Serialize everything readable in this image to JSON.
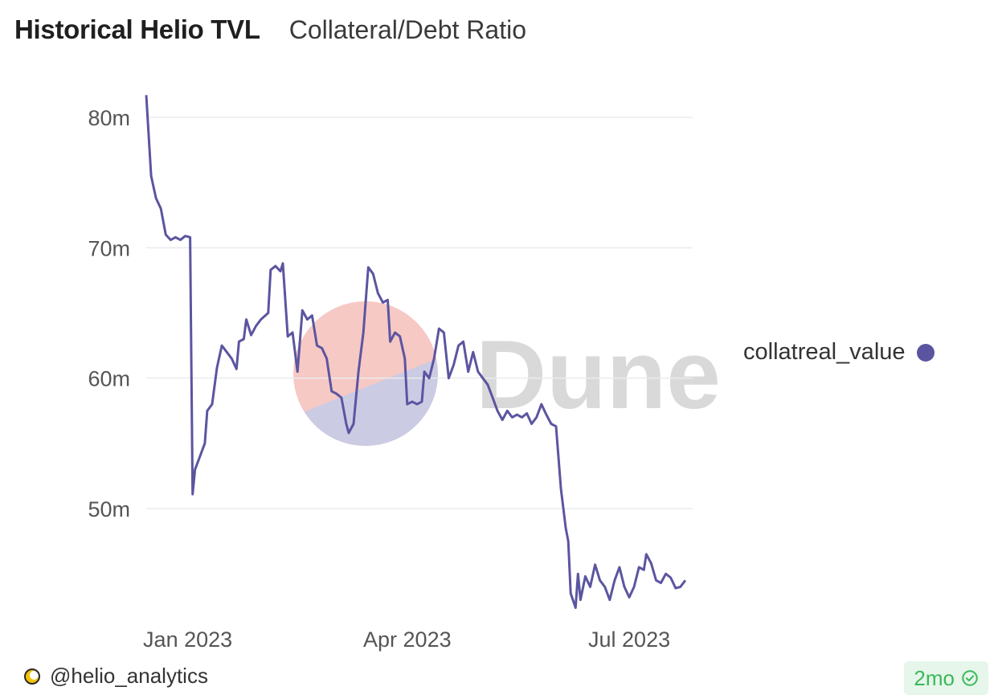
{
  "header": {
    "title": "Historical Helio TVL",
    "tab_label": "Collateral/Debt Ratio"
  },
  "legend": {
    "label": "collatreal_value",
    "color": "#5b55a0"
  },
  "watermark": {
    "text": "Dune",
    "color": "#d9d9d9",
    "logo_top_color": "#f6c9c5",
    "logo_bottom_color": "#cbcbe3"
  },
  "footer": {
    "creator": "@helio_analytics",
    "age_badge": "2mo",
    "badge_icon": "check-circle-icon",
    "avatar_icon": "moon-icon"
  },
  "chart_data": {
    "type": "line",
    "title": "Historical Helio TVL",
    "xlabel": "",
    "ylabel": "",
    "x_start": "2022-12-15",
    "x_end": "2023-07-27",
    "ylim": [
      42,
      83
    ],
    "grid": true,
    "legend_position": "right",
    "y_ticks": [
      {
        "value": 80,
        "label": "80m"
      },
      {
        "value": 70,
        "label": "70m"
      },
      {
        "value": 60,
        "label": "60m"
      },
      {
        "value": 50,
        "label": "50m"
      }
    ],
    "x_ticks": [
      {
        "date": "2023-01-01",
        "label": "Jan 2023"
      },
      {
        "date": "2023-04-01",
        "label": "Apr 2023"
      },
      {
        "date": "2023-07-01",
        "label": "Jul 2023"
      }
    ],
    "series": [
      {
        "name": "collatreal_value",
        "color": "#5b55a0",
        "points": [
          [
            "2022-12-15",
            81.7
          ],
          [
            "2022-12-17",
            75.5
          ],
          [
            "2022-12-19",
            73.8
          ],
          [
            "2022-12-21",
            73.0
          ],
          [
            "2022-12-23",
            71.0
          ],
          [
            "2022-12-25",
            70.6
          ],
          [
            "2022-12-27",
            70.8
          ],
          [
            "2022-12-29",
            70.6
          ],
          [
            "2022-12-31",
            70.9
          ],
          [
            "2023-01-02",
            70.8
          ],
          [
            "2023-01-03",
            51.1
          ],
          [
            "2023-01-04",
            53.0
          ],
          [
            "2023-01-06",
            54.0
          ],
          [
            "2023-01-08",
            55.0
          ],
          [
            "2023-01-09",
            57.5
          ],
          [
            "2023-01-11",
            58.0
          ],
          [
            "2023-01-13",
            60.8
          ],
          [
            "2023-01-15",
            62.5
          ],
          [
            "2023-01-17",
            62.0
          ],
          [
            "2023-01-19",
            61.5
          ],
          [
            "2023-01-21",
            60.7
          ],
          [
            "2023-01-22",
            62.8
          ],
          [
            "2023-01-24",
            63.0
          ],
          [
            "2023-01-25",
            64.5
          ],
          [
            "2023-01-27",
            63.3
          ],
          [
            "2023-01-29",
            64.0
          ],
          [
            "2023-01-31",
            64.5
          ],
          [
            "2023-02-03",
            65.0
          ],
          [
            "2023-02-04",
            68.3
          ],
          [
            "2023-02-06",
            68.6
          ],
          [
            "2023-02-08",
            68.2
          ],
          [
            "2023-02-09",
            68.8
          ],
          [
            "2023-02-11",
            63.2
          ],
          [
            "2023-02-13",
            63.5
          ],
          [
            "2023-02-15",
            60.5
          ],
          [
            "2023-02-17",
            65.2
          ],
          [
            "2023-02-19",
            64.5
          ],
          [
            "2023-02-21",
            64.8
          ],
          [
            "2023-02-23",
            62.5
          ],
          [
            "2023-02-25",
            62.3
          ],
          [
            "2023-02-27",
            61.5
          ],
          [
            "2023-03-01",
            59.0
          ],
          [
            "2023-03-03",
            58.8
          ],
          [
            "2023-03-05",
            58.5
          ],
          [
            "2023-03-07",
            56.5
          ],
          [
            "2023-03-08",
            55.8
          ],
          [
            "2023-03-10",
            56.5
          ],
          [
            "2023-03-12",
            60.5
          ],
          [
            "2023-03-14",
            63.5
          ],
          [
            "2023-03-16",
            68.5
          ],
          [
            "2023-03-18",
            68.0
          ],
          [
            "2023-03-20",
            66.5
          ],
          [
            "2023-03-22",
            65.8
          ],
          [
            "2023-03-24",
            66.0
          ],
          [
            "2023-03-25",
            62.8
          ],
          [
            "2023-03-27",
            63.5
          ],
          [
            "2023-03-29",
            63.2
          ],
          [
            "2023-03-31",
            61.5
          ],
          [
            "2023-04-01",
            58.0
          ],
          [
            "2023-04-03",
            58.2
          ],
          [
            "2023-04-05",
            58.0
          ],
          [
            "2023-04-07",
            58.2
          ],
          [
            "2023-04-08",
            60.5
          ],
          [
            "2023-04-10",
            60.0
          ],
          [
            "2023-04-12",
            61.5
          ],
          [
            "2023-04-14",
            63.8
          ],
          [
            "2023-04-16",
            63.5
          ],
          [
            "2023-04-18",
            60.0
          ],
          [
            "2023-04-20",
            61.0
          ],
          [
            "2023-04-22",
            62.5
          ],
          [
            "2023-04-24",
            62.8
          ],
          [
            "2023-04-26",
            60.5
          ],
          [
            "2023-04-28",
            62.0
          ],
          [
            "2023-04-30",
            60.5
          ],
          [
            "2023-05-02",
            60.0
          ],
          [
            "2023-05-04",
            59.5
          ],
          [
            "2023-05-06",
            58.5
          ],
          [
            "2023-05-08",
            57.5
          ],
          [
            "2023-05-10",
            56.8
          ],
          [
            "2023-05-12",
            57.5
          ],
          [
            "2023-05-14",
            57.0
          ],
          [
            "2023-05-16",
            57.2
          ],
          [
            "2023-05-18",
            57.0
          ],
          [
            "2023-05-20",
            57.3
          ],
          [
            "2023-05-22",
            56.5
          ],
          [
            "2023-05-24",
            57.0
          ],
          [
            "2023-05-26",
            58.0
          ],
          [
            "2023-05-28",
            57.2
          ],
          [
            "2023-05-30",
            56.5
          ],
          [
            "2023-06-01",
            56.3
          ],
          [
            "2023-06-03",
            51.5
          ],
          [
            "2023-06-05",
            48.5
          ],
          [
            "2023-06-06",
            47.5
          ],
          [
            "2023-06-07",
            43.5
          ],
          [
            "2023-06-09",
            42.4
          ],
          [
            "2023-06-10",
            45.0
          ],
          [
            "2023-06-11",
            43.0
          ],
          [
            "2023-06-13",
            44.8
          ],
          [
            "2023-06-15",
            44.0
          ],
          [
            "2023-06-17",
            45.7
          ],
          [
            "2023-06-19",
            44.5
          ],
          [
            "2023-06-21",
            44.0
          ],
          [
            "2023-06-23",
            43.0
          ],
          [
            "2023-06-25",
            44.5
          ],
          [
            "2023-06-27",
            45.5
          ],
          [
            "2023-06-29",
            44.0
          ],
          [
            "2023-07-01",
            43.2
          ],
          [
            "2023-07-03",
            44.0
          ],
          [
            "2023-07-05",
            45.5
          ],
          [
            "2023-07-07",
            45.3
          ],
          [
            "2023-07-08",
            46.5
          ],
          [
            "2023-07-10",
            45.8
          ],
          [
            "2023-07-12",
            44.5
          ],
          [
            "2023-07-14",
            44.3
          ],
          [
            "2023-07-16",
            45.0
          ],
          [
            "2023-07-18",
            44.7
          ],
          [
            "2023-07-20",
            43.9
          ],
          [
            "2023-07-22",
            44.0
          ],
          [
            "2023-07-24",
            44.5
          ]
        ]
      }
    ]
  }
}
